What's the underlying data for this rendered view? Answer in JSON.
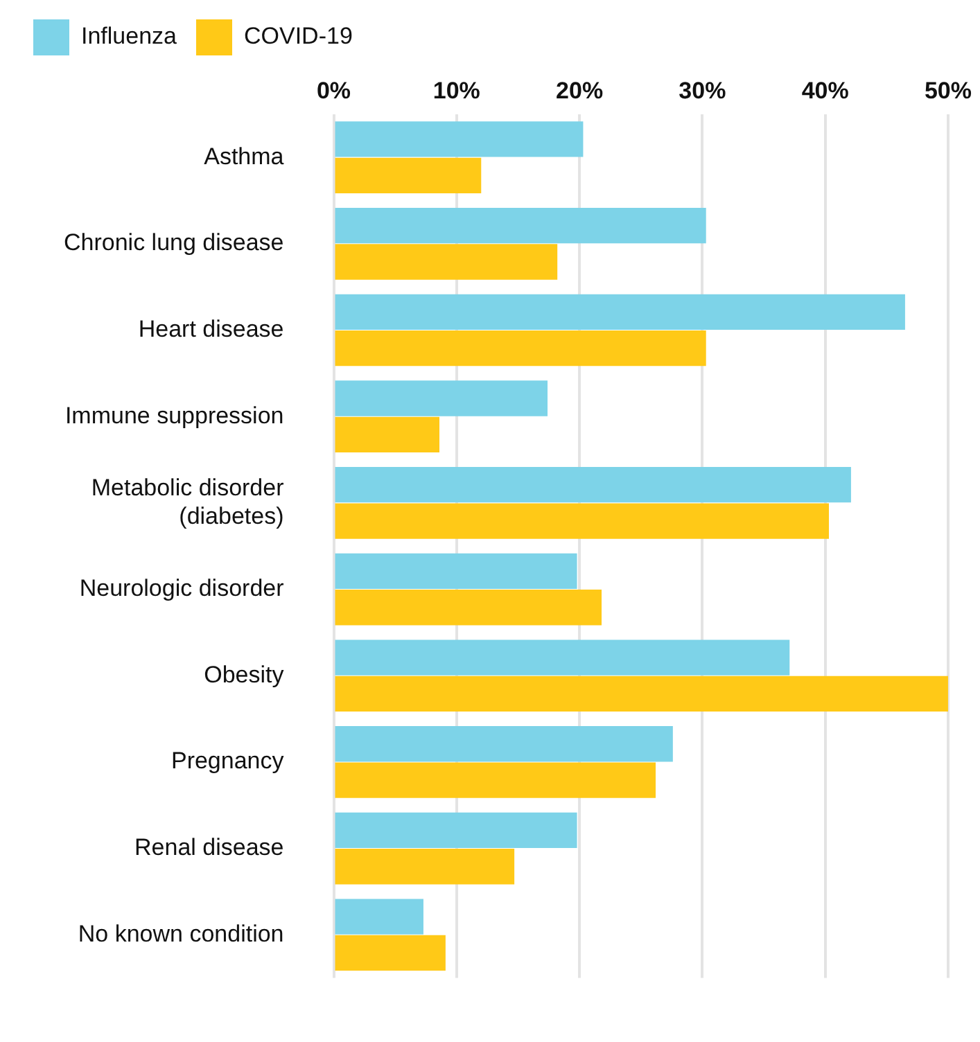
{
  "chart_data": {
    "type": "bar",
    "orientation": "horizontal",
    "legend": "top left",
    "grid": "x",
    "categories": [
      "Asthma",
      "Chronic lung disease",
      "Heart disease",
      "Immune suppression",
      "Metabolic disorder (diabetes)",
      "Neurologic disorder",
      "Obesity",
      "Pregnancy",
      "Renal disease",
      "No known condition"
    ],
    "series": [
      {
        "name": "Influenza",
        "color": "#7dd3e8",
        "values": [
          20.3,
          30.3,
          46.5,
          17.4,
          42.1,
          19.8,
          37.1,
          27.6,
          19.8,
          7.3
        ]
      },
      {
        "name": "COVID-19",
        "color": "#ffc917",
        "values": [
          12.0,
          18.2,
          30.3,
          8.6,
          40.3,
          21.8,
          50.0,
          26.2,
          14.7,
          9.1
        ]
      }
    ],
    "xlim": [
      0,
      50
    ],
    "xticks": [
      {
        "value": 0,
        "label": "0%"
      },
      {
        "value": 10,
        "label": "10%"
      },
      {
        "value": 20,
        "label": "20%"
      },
      {
        "value": 30,
        "label": "30%"
      },
      {
        "value": 40,
        "label": "40%"
      },
      {
        "value": 50,
        "label": "50%"
      }
    ]
  }
}
